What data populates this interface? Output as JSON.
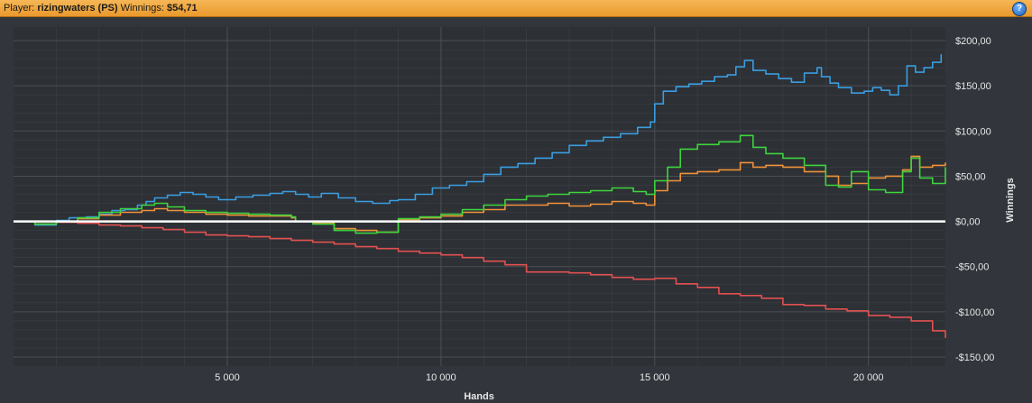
{
  "header": {
    "player_label": "Player:",
    "player_name": "rizingwaters (PS)",
    "winnings_label": "Winnings:",
    "winnings_value": "$54,71",
    "help_label": "?"
  },
  "colors": {
    "background": "#32363c",
    "plot_background": "#2d3035",
    "grid": "#4b5057",
    "zero_line": "#ffffff",
    "title_bar": "#f0a740"
  },
  "chart_data": {
    "type": "line",
    "xlabel": "Hands",
    "ylabel": "Winnings",
    "xlim": [
      0,
      21800
    ],
    "ylim": [
      -160,
      215
    ],
    "x_ticks": [
      5000,
      10000,
      15000,
      20000
    ],
    "x_tick_labels": [
      "5 000",
      "10 000",
      "15 000",
      "20 000"
    ],
    "y_ticks": [
      200,
      150,
      100,
      50,
      0,
      -50,
      -100,
      -150
    ],
    "y_tick_labels": [
      "$200,00",
      "$150,00",
      "$100,00",
      "$50,00",
      "$0,00",
      "-$50,00",
      "-$100,00",
      "-$150,00"
    ],
    "grid": true,
    "legend": "none",
    "series": [
      {
        "color": "#3a9de0",
        "x": [
          0,
          500,
          1000,
          1300,
          1700,
          2000,
          2300,
          2600,
          2900,
          3100,
          3300,
          3600,
          3900,
          4200,
          4500,
          4800,
          5200,
          5600,
          6000,
          6300,
          6600,
          6900,
          7200,
          7600,
          8000,
          8400,
          8800,
          9000,
          9400,
          9800,
          10200,
          10600,
          11000,
          11400,
          11800,
          12200,
          12600,
          13000,
          13400,
          13800,
          14200,
          14600,
          14900,
          15000,
          15200,
          15500,
          15800,
          16100,
          16400,
          16700,
          16900,
          17100,
          17300,
          17600,
          17900,
          18200,
          18500,
          18800,
          18900,
          19100,
          19300,
          19600,
          19900,
          20100,
          20300,
          20500,
          20700,
          20900,
          21100,
          21300,
          21500,
          21700
        ],
        "y": [
          0,
          -4,
          1,
          4,
          5,
          8,
          12,
          13,
          18,
          22,
          26,
          29,
          32,
          30,
          27,
          24,
          27,
          29,
          31,
          33,
          30,
          27,
          31,
          26,
          22,
          20,
          23,
          24,
          30,
          37,
          40,
          44,
          52,
          60,
          64,
          70,
          76,
          84,
          89,
          93,
          97,
          104,
          110,
          130,
          144,
          149,
          152,
          155,
          160,
          162,
          171,
          178,
          167,
          163,
          158,
          154,
          164,
          170,
          160,
          153,
          148,
          142,
          144,
          148,
          145,
          140,
          150,
          172,
          165,
          170,
          176,
          185
        ]
      },
      {
        "color": "#e25151",
        "x": [
          0,
          500,
          1000,
          1500,
          2000,
          2500,
          3000,
          3500,
          4000,
          4500,
          5000,
          5500,
          6000,
          6500,
          7000,
          7500,
          8000,
          8500,
          9000,
          9500,
          10000,
          10500,
          11000,
          11500,
          12000,
          12500,
          13000,
          13500,
          14000,
          14500,
          15000,
          15500,
          16000,
          16500,
          17000,
          17500,
          18000,
          18500,
          19000,
          19500,
          20000,
          20500,
          21000,
          21500,
          21800
        ],
        "y": [
          0,
          0,
          -1,
          -2,
          -4,
          -5,
          -7,
          -9,
          -12,
          -15,
          -16,
          -17,
          -19,
          -21,
          -23,
          -25,
          -28,
          -30,
          -33,
          -35,
          -37,
          -40,
          -44,
          -48,
          -56,
          -56,
          -57,
          -59,
          -62,
          -64,
          -63,
          -69,
          -73,
          -80,
          -82,
          -85,
          -92,
          -93,
          -97,
          -99,
          -104,
          -106,
          -110,
          -121,
          -129
        ]
      },
      {
        "color": "#f0923a",
        "x": [
          0,
          500,
          1000,
          1500,
          2000,
          2500,
          3000,
          3300,
          3600,
          4000,
          4500,
          5000,
          5500,
          6000,
          6500,
          6600,
          7000,
          7500,
          8000,
          8500,
          9000,
          9500,
          10000,
          10500,
          11000,
          11500,
          12000,
          12500,
          13000,
          13500,
          14000,
          14500,
          14800,
          15000,
          15300,
          15600,
          16000,
          16500,
          17000,
          17300,
          17600,
          18000,
          18500,
          19000,
          19300,
          19600,
          20000,
          20400,
          20800,
          21000,
          21200,
          21500,
          21800
        ],
        "y": [
          0,
          -3,
          0,
          3,
          7,
          10,
          12,
          14,
          12,
          10,
          8,
          7,
          6,
          6,
          4,
          0,
          -2,
          -8,
          -10,
          -12,
          2,
          4,
          6,
          10,
          13,
          18,
          18,
          20,
          17,
          19,
          22,
          20,
          18,
          34,
          45,
          53,
          55,
          57,
          65,
          60,
          62,
          60,
          55,
          50,
          40,
          42,
          48,
          50,
          57,
          72,
          60,
          62,
          65
        ]
      },
      {
        "color": "#3ed43e",
        "x": [
          0,
          500,
          1000,
          1500,
          2000,
          2500,
          3000,
          3300,
          3600,
          4000,
          4500,
          5000,
          5500,
          6000,
          6500,
          6600,
          7000,
          7500,
          8000,
          8500,
          9000,
          9500,
          10000,
          10500,
          11000,
          11500,
          12000,
          12500,
          13000,
          13500,
          14000,
          14500,
          14800,
          15000,
          15300,
          15600,
          16000,
          16500,
          17000,
          17300,
          17600,
          18000,
          18500,
          19000,
          19300,
          19600,
          20000,
          20400,
          20800,
          21000,
          21200,
          21500,
          21800
        ],
        "y": [
          0,
          -3,
          0,
          4,
          10,
          14,
          18,
          20,
          16,
          12,
          10,
          9,
          8,
          7,
          5,
          0,
          -3,
          -10,
          -13,
          -12,
          3,
          5,
          8,
          13,
          18,
          24,
          28,
          30,
          32,
          34,
          37,
          33,
          30,
          45,
          60,
          80,
          85,
          88,
          95,
          82,
          75,
          70,
          62,
          40,
          38,
          55,
          35,
          32,
          55,
          70,
          48,
          42,
          60
        ]
      }
    ]
  }
}
